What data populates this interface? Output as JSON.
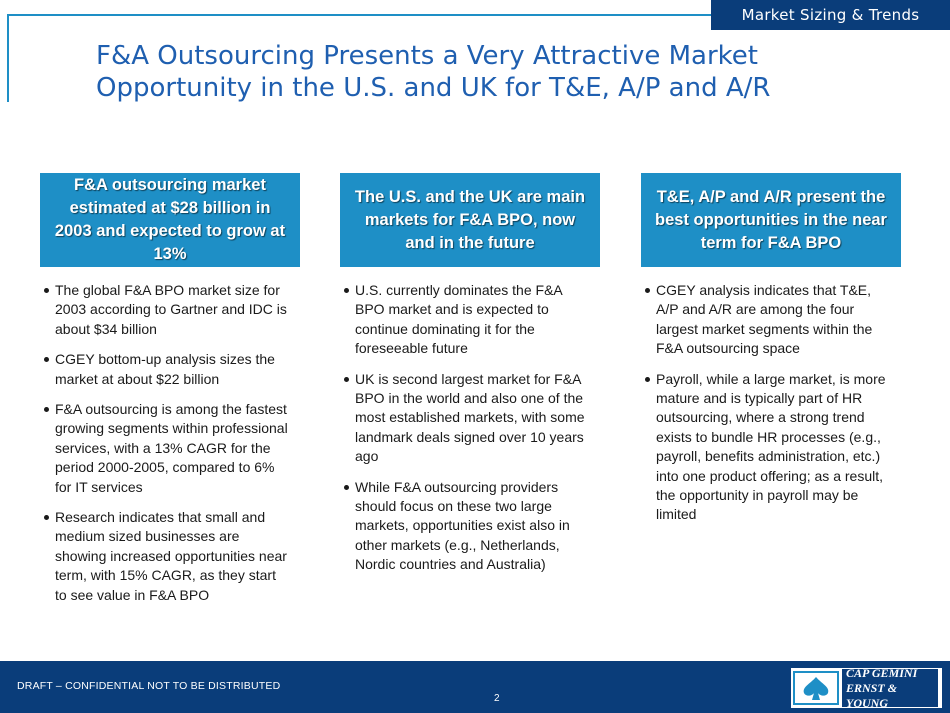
{
  "section_tag": "Market Sizing & Trends",
  "title": "F&A Outsourcing Presents a Very Attractive Market Opportunity in the U.S. and UK for T&E, A/P and A/R",
  "columns": [
    {
      "header": "F&A outsourcing market estimated at $28 billion in 2003 and expected to grow at 13%",
      "bullets": [
        "The global F&A BPO market size for 2003 according to Gartner and IDC is about $34 billion",
        "CGEY bottom-up analysis sizes the market at about $22 billion",
        "F&A outsourcing is among the fastest growing segments within professional services, with a 13% CAGR for the period 2000-2005, compared to 6% for IT services",
        "Research indicates that small and medium sized businesses are showing increased opportunities near term, with 15% CAGR, as they start to see value in F&A BPO"
      ]
    },
    {
      "header": "The U.S. and the UK are main markets for F&A BPO, now and in the future",
      "bullets": [
        "U.S. currently dominates the F&A BPO market and is expected to continue dominating it for the foreseeable future",
        "UK is second largest market for F&A BPO in the world and also one of the most established markets, with some landmark deals signed over 10 years ago",
        "While F&A outsourcing providers should focus on these two large markets, opportunities exist also in other markets (e.g., Netherlands, Nordic countries and Australia)"
      ]
    },
    {
      "header": "T&E, A/P and A/R present the best opportunities in the near term for F&A BPO",
      "bullets": [
        "CGEY analysis indicates that T&E, A/P and A/R are among the four largest market segments within the F&A outsourcing space",
        "Payroll, while a large market, is more mature and is typically part of HR outsourcing, where a strong trend exists to bundle HR processes (e.g., payroll, benefits administration, etc.) into one product offering; as a result, the opportunity in payroll may be limited"
      ]
    }
  ],
  "footer": {
    "confidential": "DRAFT – CONFIDENTIAL NOT TO BE DISTRIBUTED",
    "page_number": "2",
    "logo_line1": "CAP GEMINI",
    "logo_line2": "ERNST & YOUNG",
    "logo_icon": "spade-icon"
  },
  "colors": {
    "dark_blue": "#0a3d7a",
    "accent_blue": "#1e8fc6",
    "title_blue": "#1f5fb0"
  }
}
